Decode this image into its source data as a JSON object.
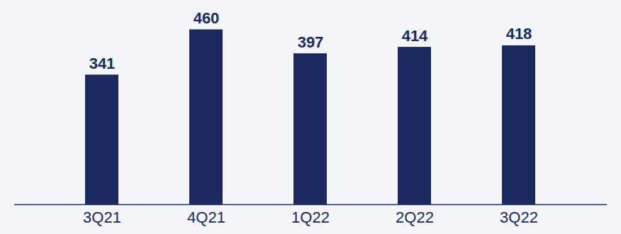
{
  "chart_data": {
    "type": "bar",
    "categories": [
      "3Q21",
      "4Q21",
      "1Q22",
      "2Q22",
      "3Q22"
    ],
    "values": [
      341,
      460,
      397,
      414,
      418
    ],
    "color": "#1b2a5e",
    "ylim": [
      0,
      500
    ],
    "data_labels": true,
    "tick_labels": "x",
    "grid": false
  }
}
